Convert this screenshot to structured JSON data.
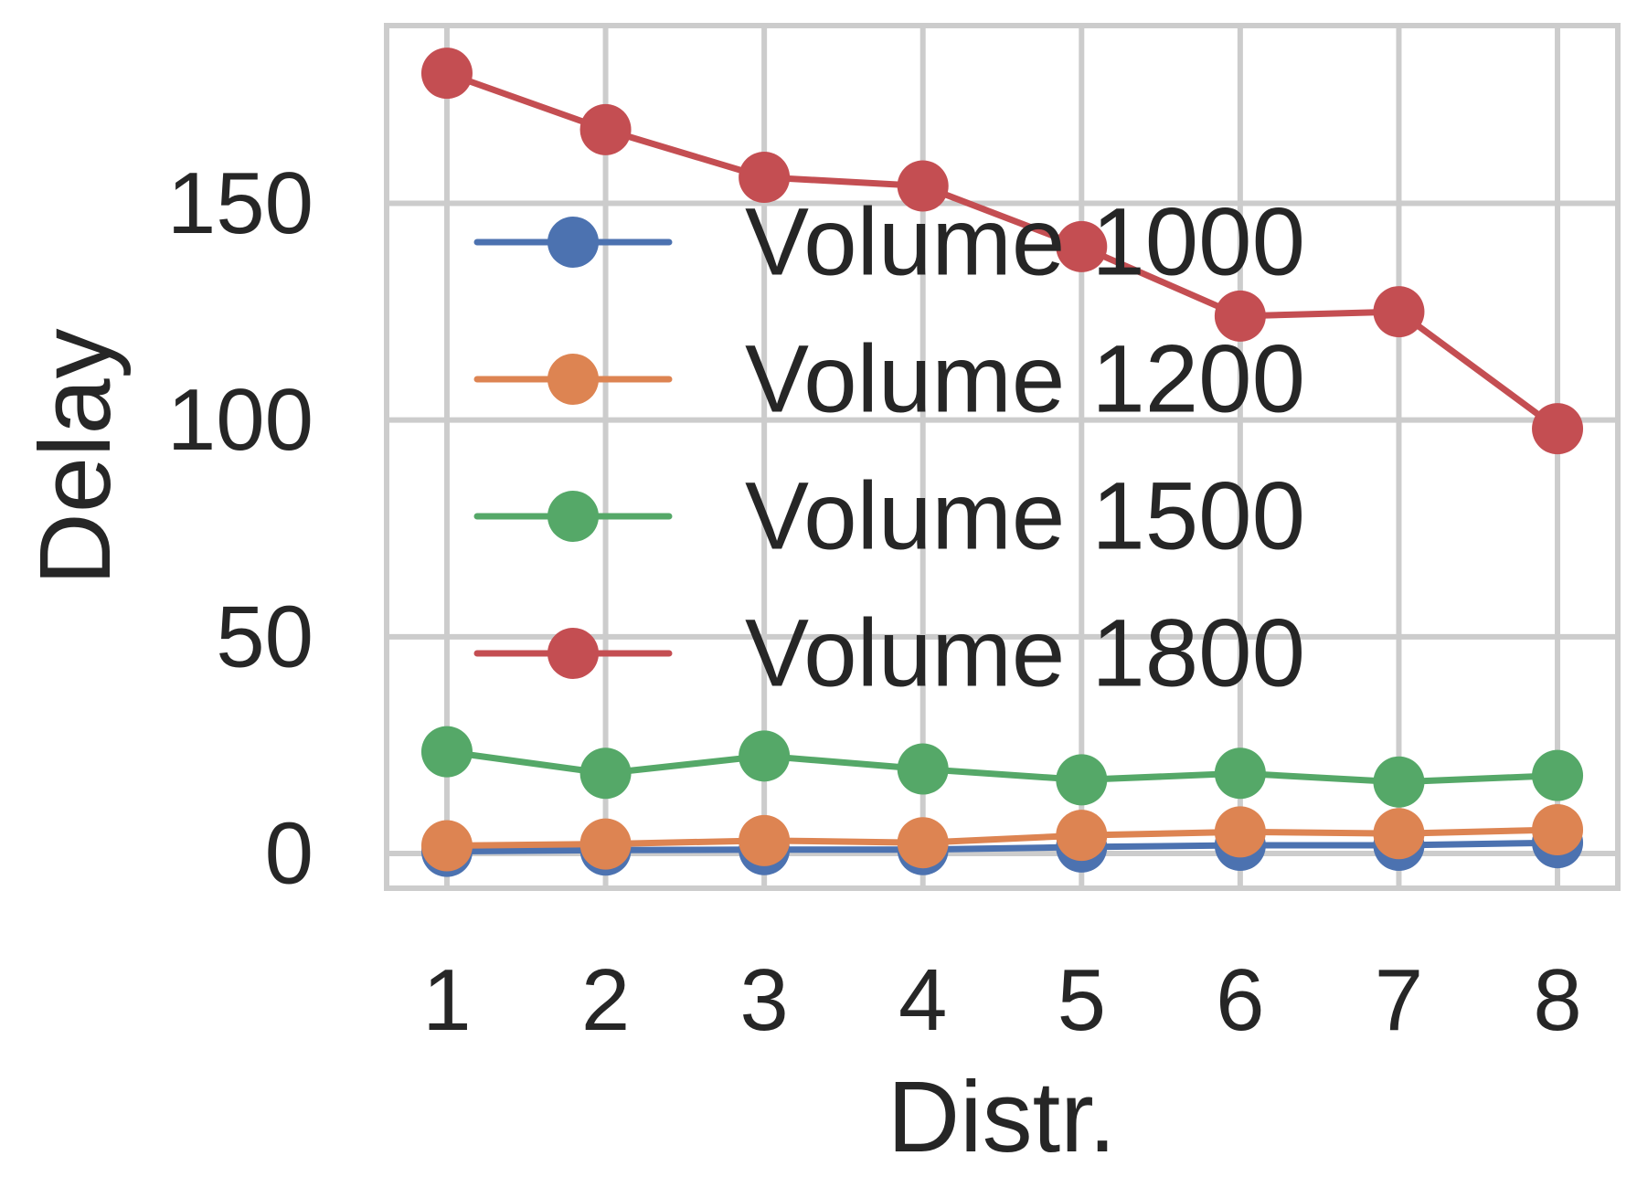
{
  "chart_data": {
    "type": "line",
    "title": "",
    "xlabel": "Distr.",
    "ylabel": "Delay",
    "x": [
      1,
      2,
      3,
      4,
      5,
      6,
      7,
      8
    ],
    "xticks": [
      "1",
      "2",
      "3",
      "4",
      "5",
      "6",
      "7",
      "8"
    ],
    "yticks": [
      "0",
      "50",
      "100",
      "150"
    ],
    "ytick_values": [
      0,
      50,
      100,
      150
    ],
    "xlim": [
      0.62,
      8.38
    ],
    "ylim": [
      -8,
      191
    ],
    "grid": true,
    "legend_position": "center",
    "series": [
      {
        "name": "Volume 1000",
        "color": "#4c72b0",
        "values": [
          0.5,
          0.8,
          0.9,
          0.9,
          1.5,
          1.9,
          1.9,
          2.5
        ]
      },
      {
        "name": "Volume 1200",
        "color": "#dd8452",
        "values": [
          1.8,
          2.2,
          3.0,
          2.5,
          4.2,
          5.0,
          4.6,
          5.5
        ]
      },
      {
        "name": "Volume 1500",
        "color": "#55a868",
        "values": [
          23.5,
          18.5,
          22.5,
          19.5,
          17.0,
          18.5,
          16.5,
          18.0
        ]
      },
      {
        "name": "Volume 1800",
        "color": "#c44e52",
        "values": [
          180,
          167,
          156,
          154,
          140,
          124,
          125,
          98
        ]
      }
    ]
  }
}
